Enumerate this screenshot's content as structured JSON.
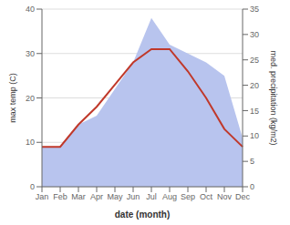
{
  "chart_data": {
    "type": "line",
    "xlabel": "date (month)",
    "ylabel": "max temp (C)",
    "y2label": "med. precipitation (kg/m2)",
    "categories": [
      "Jan",
      "Feb",
      "Mar",
      "Apr",
      "May",
      "Jun",
      "Jul",
      "Aug",
      "Sep",
      "Oct",
      "Nov",
      "Dec"
    ],
    "series": [
      {
        "type": "area",
        "color": "#b8c4ee",
        "values": [
          9,
          9,
          14,
          16,
          22,
          28,
          38,
          32,
          30,
          28,
          25,
          11
        ]
      },
      {
        "type": "line",
        "color": "#c0392b",
        "values": [
          9,
          9,
          14,
          18,
          23,
          28,
          31,
          31,
          26,
          20,
          13,
          9
        ]
      }
    ],
    "ylim": [
      0,
      40
    ],
    "yticks": [
      0,
      10,
      20,
      30,
      40
    ],
    "y2lim": [
      0,
      35
    ],
    "y2ticks": [
      0,
      5,
      10,
      15,
      20,
      25,
      30,
      35
    ],
    "grid": true
  }
}
